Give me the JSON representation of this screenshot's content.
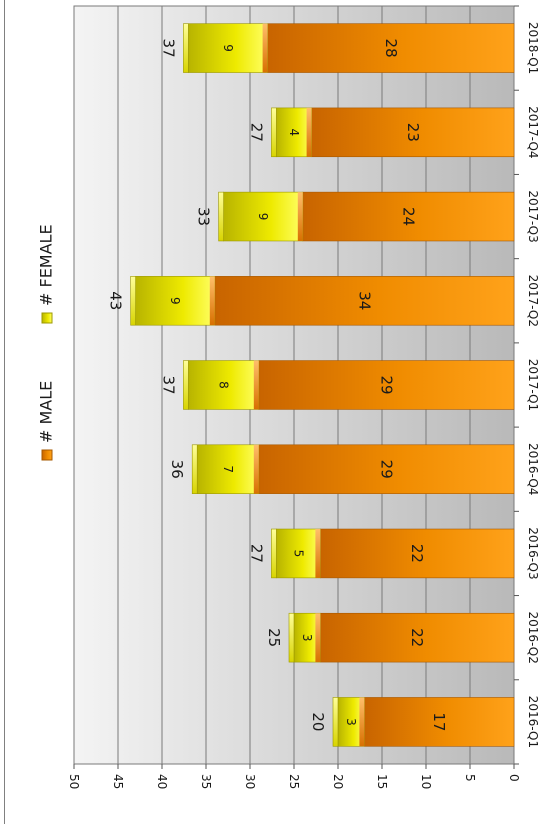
{
  "chart_data": {
    "type": "bar",
    "stacked": true,
    "orientation": "rotated-90-clockwise",
    "categories": [
      "2016-Q1",
      "2016-Q2",
      "2016-Q3",
      "2016-Q4",
      "2017-Q1",
      "2017-Q2",
      "2017-Q3",
      "2017-Q4",
      "2018-Q1"
    ],
    "series": [
      {
        "name": "# MALE",
        "values": [
          17,
          22,
          22,
          29,
          29,
          34,
          24,
          23,
          28
        ],
        "color": "#f08c00"
      },
      {
        "name": "# FEMALE",
        "values": [
          3,
          3,
          5,
          7,
          8,
          9,
          9,
          4,
          9
        ],
        "color": "#e8e400"
      }
    ],
    "totals": [
      20,
      25,
      27,
      36,
      37,
      43,
      33,
      27,
      37
    ],
    "value_axis": {
      "min": 0,
      "max": 50,
      "step": 5,
      "ticks": [
        "0",
        "5",
        "10",
        "15",
        "20",
        "25",
        "30",
        "35",
        "40",
        "45",
        "50"
      ]
    },
    "grid": true,
    "legend_position": "top",
    "title": "",
    "xlabel": "",
    "ylabel": ""
  }
}
